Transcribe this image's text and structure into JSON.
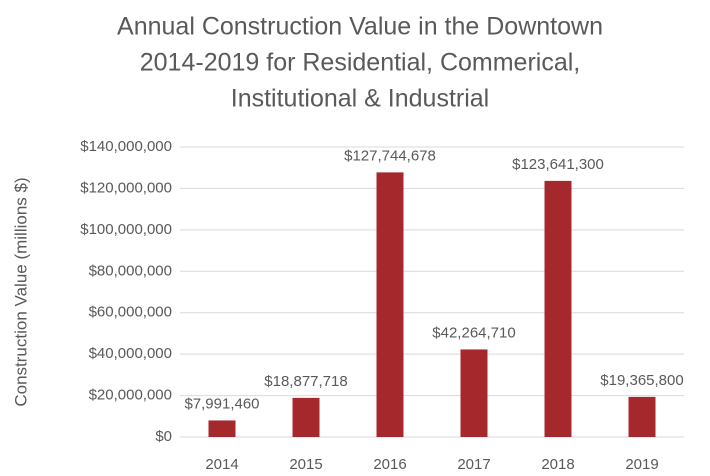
{
  "chart_data": {
    "type": "bar",
    "title": [
      "Annual Construction Value in the Downtown",
      "2014-2019 for Residential, Commerical,",
      "Institutional & Industrial"
    ],
    "y_label": "Construction Value (millions $)",
    "categories": [
      "2014",
      "2015",
      "2016",
      "2017",
      "2018",
      "2019"
    ],
    "values": [
      7991460,
      18877718,
      127744678,
      42264710,
      123641300,
      19365800
    ],
    "value_labels": [
      "$7,991,460",
      "$18,877,718",
      "$127,744,678",
      "$42,264,710",
      "$123,641,300",
      "$19,365,800"
    ],
    "color": "#a5282c",
    "ylim": [
      0,
      140000000
    ],
    "yticks": [
      {
        "value": 0,
        "label": "$0"
      },
      {
        "value": 20000000,
        "label": "$20,000,000"
      },
      {
        "value": 40000000,
        "label": "$40,000,000"
      },
      {
        "value": 60000000,
        "label": "$60,000,000"
      },
      {
        "value": 80000000,
        "label": "$80,000,000"
      },
      {
        "value": 100000000,
        "label": "$100,000,000"
      },
      {
        "value": 120000000,
        "label": "$120,000,000"
      },
      {
        "value": 140000000,
        "label": "$140,000,000"
      }
    ],
    "grid": true
  }
}
